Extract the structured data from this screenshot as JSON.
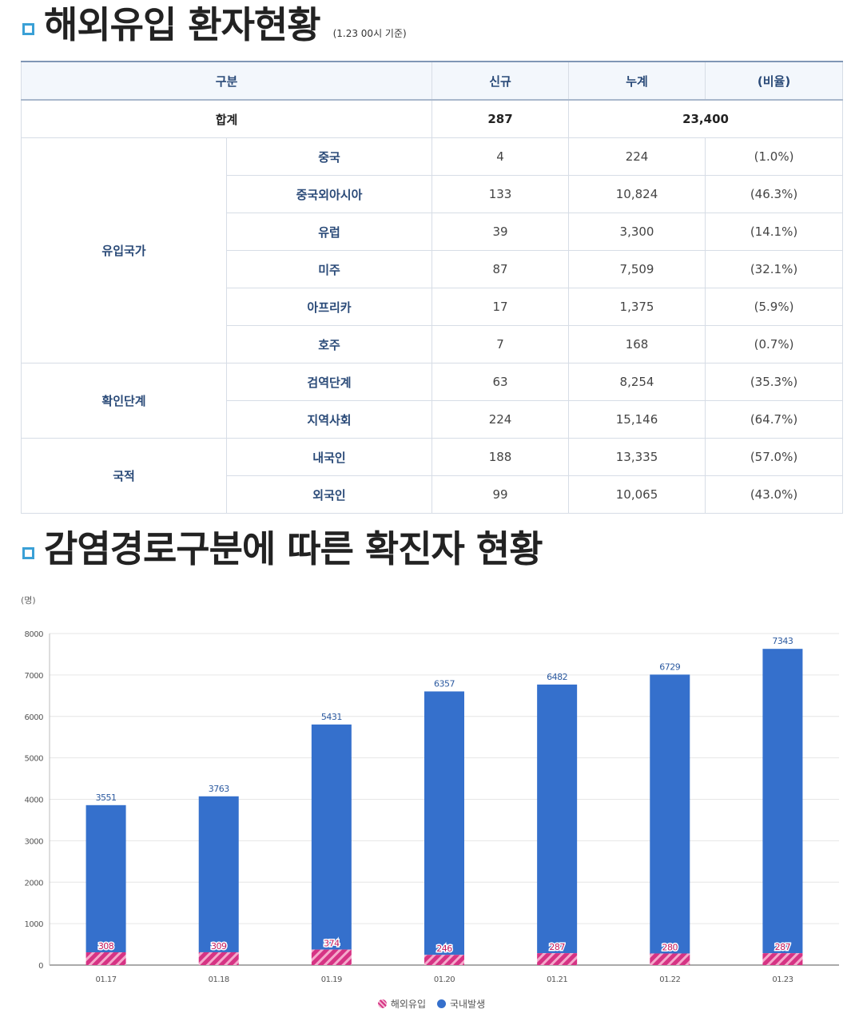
{
  "section1": {
    "title": "해외유입 환자현황",
    "asof": "(1.23 00시 기준)"
  },
  "table": {
    "headers": [
      "구분",
      "신규",
      "누계",
      "(비율)"
    ],
    "total": {
      "label": "합계",
      "new": "287",
      "cumulative": "23,400"
    },
    "groups": [
      {
        "name": "유입국가",
        "rows": [
          {
            "label": "중국",
            "new": "4",
            "cum": "224",
            "ratio": "(1.0%)"
          },
          {
            "label": "중국외아시아",
            "new": "133",
            "cum": "10,824",
            "ratio": "(46.3%)"
          },
          {
            "label": "유럽",
            "new": "39",
            "cum": "3,300",
            "ratio": "(14.1%)"
          },
          {
            "label": "미주",
            "new": "87",
            "cum": "7,509",
            "ratio": "(32.1%)"
          },
          {
            "label": "아프리카",
            "new": "17",
            "cum": "1,375",
            "ratio": "(5.9%)"
          },
          {
            "label": "호주",
            "new": "7",
            "cum": "168",
            "ratio": "(0.7%)"
          }
        ]
      },
      {
        "name": "확인단계",
        "rows": [
          {
            "label": "검역단계",
            "new": "63",
            "cum": "8,254",
            "ratio": "(35.3%)"
          },
          {
            "label": "지역사회",
            "new": "224",
            "cum": "15,146",
            "ratio": "(64.7%)"
          }
        ]
      },
      {
        "name": "국적",
        "rows": [
          {
            "label": "내국인",
            "new": "188",
            "cum": "13,335",
            "ratio": "(57.0%)"
          },
          {
            "label": "외국인",
            "new": "99",
            "cum": "10,065",
            "ratio": "(43.0%)"
          }
        ]
      }
    ]
  },
  "section2": {
    "title": "감염경로구분에 따른 확진자 현황"
  },
  "chart_data": {
    "type": "bar",
    "stacked": true,
    "unit_label": "(명)",
    "categories": [
      "01.17",
      "01.18",
      "01.19",
      "01.20",
      "01.21",
      "01.22",
      "01.23"
    ],
    "series": [
      {
        "name": "해외유입",
        "color": "#d63384",
        "pattern": "diagonal-stripes",
        "values": [
          308,
          309,
          374,
          246,
          287,
          280,
          287
        ]
      },
      {
        "name": "국내발생",
        "color": "#3570cc",
        "values": [
          3551,
          3763,
          5431,
          6357,
          6482,
          6729,
          7343
        ]
      }
    ],
    "ylim": [
      0,
      8000
    ],
    "yticks": [
      0,
      1000,
      2000,
      3000,
      4000,
      5000,
      6000,
      7000,
      8000
    ],
    "grid": true,
    "legend_position": "bottom"
  }
}
